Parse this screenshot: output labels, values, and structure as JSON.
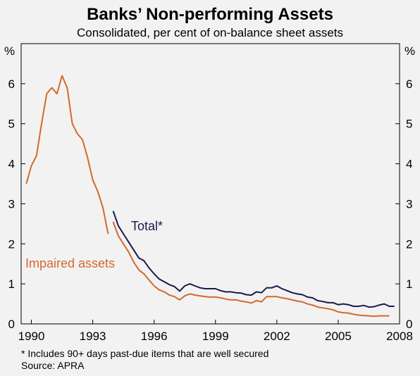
{
  "colors": {
    "background": "#f2f2f2",
    "total": "#1a1a4a",
    "impaired": "#d4692a",
    "axis": "#000000"
  },
  "chart_data": {
    "type": "line",
    "title": "Banks’ Non-performing Assets",
    "subtitle": "Consolidated, per cent of on-balance sheet assets",
    "ylabel_left": "%",
    "ylabel_right": "%",
    "xlim": [
      1989.5,
      2008
    ],
    "ylim": [
      0,
      7
    ],
    "x_ticks": [
      1990,
      1993,
      1996,
      1999,
      2002,
      2005,
      2008
    ],
    "y_ticks": [
      0,
      1,
      2,
      3,
      4,
      5,
      6
    ],
    "grid": false,
    "series": [
      {
        "name": "Impaired assets",
        "color": "#d4692a",
        "segments": [
          [
            [
              1989.75,
              3.5
            ],
            [
              1990.0,
              3.95
            ],
            [
              1990.25,
              4.2
            ],
            [
              1990.5,
              5.0
            ],
            [
              1990.75,
              5.75
            ],
            [
              1991.0,
              5.9
            ],
            [
              1991.25,
              5.75
            ],
            [
              1991.5,
              6.2
            ],
            [
              1991.75,
              5.9
            ],
            [
              1992.0,
              5.0
            ],
            [
              1992.25,
              4.75
            ],
            [
              1992.5,
              4.6
            ],
            [
              1992.75,
              4.15
            ],
            [
              1993.0,
              3.6
            ],
            [
              1993.25,
              3.3
            ],
            [
              1993.5,
              2.9
            ],
            [
              1993.75,
              2.25
            ]
          ],
          [
            [
              1994.0,
              2.55
            ],
            [
              1994.25,
              2.2
            ],
            [
              1994.5,
              2.0
            ],
            [
              1994.75,
              1.8
            ],
            [
              1995.0,
              1.55
            ],
            [
              1995.25,
              1.35
            ],
            [
              1995.5,
              1.25
            ],
            [
              1995.75,
              1.1
            ],
            [
              1996.0,
              0.95
            ],
            [
              1996.25,
              0.85
            ],
            [
              1996.5,
              0.8
            ],
            [
              1996.75,
              0.72
            ],
            [
              1997.0,
              0.68
            ],
            [
              1997.25,
              0.6
            ],
            [
              1997.5,
              0.7
            ],
            [
              1997.75,
              0.75
            ],
            [
              1998.0,
              0.72
            ],
            [
              1998.25,
              0.7
            ],
            [
              1998.5,
              0.68
            ],
            [
              1998.75,
              0.67
            ],
            [
              1999.0,
              0.67
            ],
            [
              1999.25,
              0.65
            ],
            [
              1999.5,
              0.62
            ],
            [
              1999.75,
              0.6
            ],
            [
              2000.0,
              0.6
            ],
            [
              2000.25,
              0.57
            ],
            [
              2000.5,
              0.55
            ],
            [
              2000.75,
              0.52
            ],
            [
              2001.0,
              0.58
            ],
            [
              2001.25,
              0.55
            ],
            [
              2001.5,
              0.68
            ],
            [
              2001.75,
              0.68
            ],
            [
              2002.0,
              0.68
            ],
            [
              2002.25,
              0.65
            ],
            [
              2002.5,
              0.63
            ],
            [
              2002.75,
              0.6
            ],
            [
              2003.0,
              0.57
            ],
            [
              2003.25,
              0.55
            ],
            [
              2003.5,
              0.5
            ],
            [
              2003.75,
              0.47
            ],
            [
              2004.0,
              0.42
            ],
            [
              2004.25,
              0.4
            ],
            [
              2004.5,
              0.38
            ],
            [
              2004.75,
              0.35
            ],
            [
              2005.0,
              0.3
            ],
            [
              2005.25,
              0.28
            ],
            [
              2005.5,
              0.27
            ],
            [
              2005.75,
              0.24
            ],
            [
              2006.0,
              0.22
            ],
            [
              2006.25,
              0.21
            ],
            [
              2006.5,
              0.2
            ],
            [
              2006.75,
              0.19
            ],
            [
              2007.0,
              0.2
            ],
            [
              2007.25,
              0.2
            ],
            [
              2007.5,
              0.2
            ]
          ]
        ]
      },
      {
        "name": "Total*",
        "color": "#1a1a4a",
        "segments": [
          [
            [
              1994.0,
              2.82
            ],
            [
              1994.25,
              2.45
            ],
            [
              1994.5,
              2.25
            ],
            [
              1994.75,
              2.05
            ],
            [
              1995.0,
              1.85
            ],
            [
              1995.25,
              1.65
            ],
            [
              1995.5,
              1.58
            ],
            [
              1995.75,
              1.4
            ],
            [
              1996.0,
              1.25
            ],
            [
              1996.25,
              1.12
            ],
            [
              1996.5,
              1.05
            ],
            [
              1996.75,
              0.98
            ],
            [
              1997.0,
              0.93
            ],
            [
              1997.25,
              0.82
            ],
            [
              1997.5,
              0.95
            ],
            [
              1997.75,
              1.0
            ],
            [
              1998.0,
              0.95
            ],
            [
              1998.25,
              0.9
            ],
            [
              1998.5,
              0.88
            ],
            [
              1998.75,
              0.88
            ],
            [
              1999.0,
              0.88
            ],
            [
              1999.25,
              0.83
            ],
            [
              1999.5,
              0.8
            ],
            [
              1999.75,
              0.8
            ],
            [
              2000.0,
              0.78
            ],
            [
              2000.25,
              0.77
            ],
            [
              2000.5,
              0.73
            ],
            [
              2000.75,
              0.72
            ],
            [
              2001.0,
              0.8
            ],
            [
              2001.25,
              0.78
            ],
            [
              2001.5,
              0.9
            ],
            [
              2001.75,
              0.9
            ],
            [
              2002.0,
              0.95
            ],
            [
              2002.25,
              0.88
            ],
            [
              2002.5,
              0.83
            ],
            [
              2002.75,
              0.78
            ],
            [
              2003.0,
              0.75
            ],
            [
              2003.25,
              0.73
            ],
            [
              2003.5,
              0.67
            ],
            [
              2003.75,
              0.65
            ],
            [
              2004.0,
              0.58
            ],
            [
              2004.25,
              0.56
            ],
            [
              2004.5,
              0.53
            ],
            [
              2004.75,
              0.53
            ],
            [
              2005.0,
              0.48
            ],
            [
              2005.25,
              0.5
            ],
            [
              2005.5,
              0.48
            ],
            [
              2005.75,
              0.44
            ],
            [
              2006.0,
              0.44
            ],
            [
              2006.25,
              0.46
            ],
            [
              2006.5,
              0.42
            ],
            [
              2006.75,
              0.43
            ],
            [
              2007.0,
              0.47
            ],
            [
              2007.25,
              0.5
            ],
            [
              2007.5,
              0.44
            ],
            [
              2007.75,
              0.44
            ]
          ]
        ]
      }
    ],
    "annotations": {
      "total_label": "Total*",
      "impaired_label": "Impaired assets"
    },
    "footnote": "* Includes 90+ days past-due items that are well secured",
    "source": "Source: APRA"
  }
}
